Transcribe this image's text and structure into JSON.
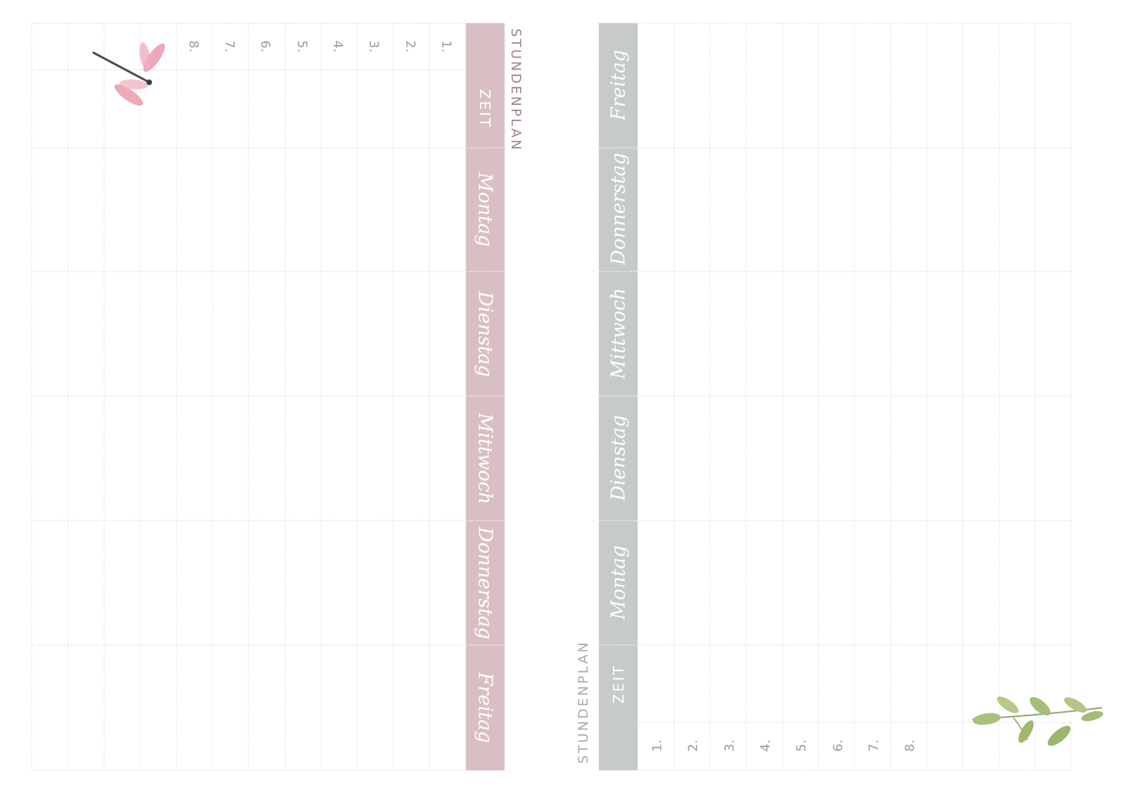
{
  "left_page": {
    "title": "STUNDENPLAN",
    "time_label": "ZEIT",
    "days": [
      "Montag",
      "Dienstag",
      "Mittwoch",
      "Donnerstag",
      "Freitag"
    ],
    "periods": [
      "1.",
      "2.",
      "3.",
      "4.",
      "5.",
      "6.",
      "7.",
      "8."
    ],
    "accent_color": "#d9bfc3",
    "decoration_icon": "dragonfly-icon"
  },
  "right_page": {
    "title": "STUNDENPLAN",
    "time_label": "ZEIT",
    "days": [
      "Montag",
      "Dienstag",
      "Mittwoch",
      "Donnerstag",
      "Freitag"
    ],
    "periods": [
      "1.",
      "2.",
      "3.",
      "4.",
      "5.",
      "6.",
      "7.",
      "8."
    ],
    "accent_color": "#c6cac9",
    "decoration_icon": "leaf-branch-icon"
  }
}
